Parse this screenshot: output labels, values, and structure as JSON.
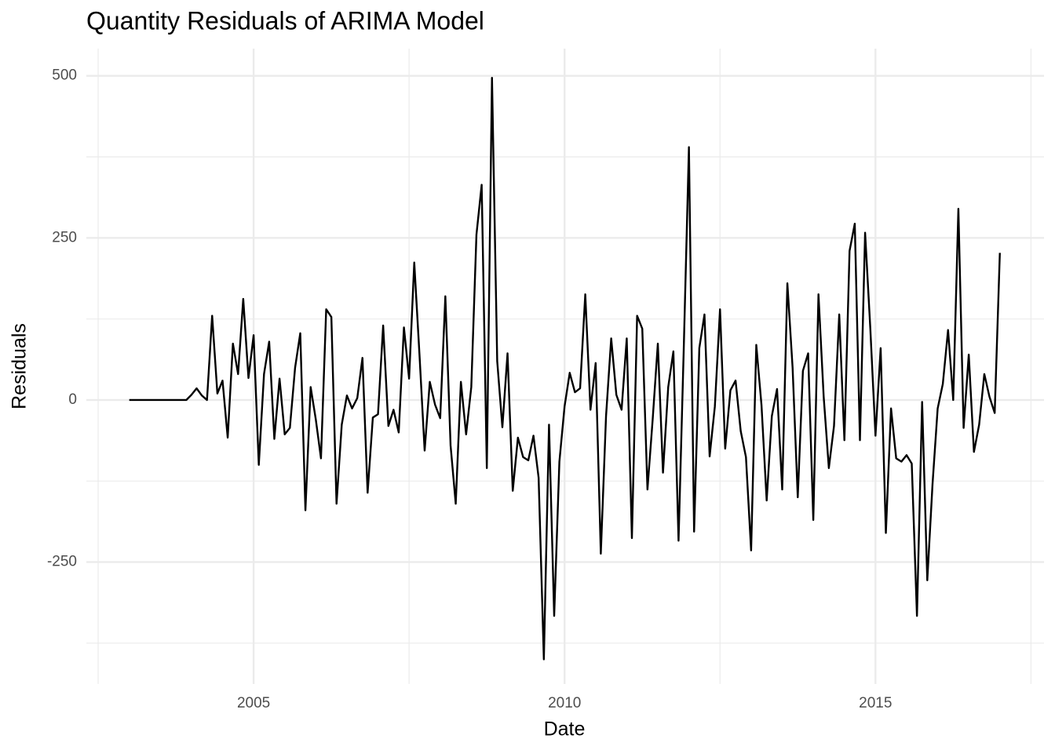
{
  "chart_data": {
    "type": "line",
    "title": "Quantity Residuals of ARIMA Model",
    "xlabel": "Date",
    "ylabel": "Residuals",
    "x": [
      2003,
      2003.083,
      2003.167,
      2003.25,
      2003.333,
      2003.417,
      2003.5,
      2003.583,
      2003.667,
      2003.75,
      2003.833,
      2003.917,
      2004,
      2004.083,
      2004.167,
      2004.25,
      2004.333,
      2004.417,
      2004.5,
      2004.583,
      2004.667,
      2004.75,
      2004.833,
      2004.917,
      2005,
      2005.083,
      2005.167,
      2005.25,
      2005.333,
      2005.417,
      2005.5,
      2005.583,
      2005.667,
      2005.75,
      2005.833,
      2005.917,
      2006,
      2006.083,
      2006.167,
      2006.25,
      2006.333,
      2006.417,
      2006.5,
      2006.583,
      2006.667,
      2006.75,
      2006.833,
      2006.917,
      2007,
      2007.083,
      2007.167,
      2007.25,
      2007.333,
      2007.417,
      2007.5,
      2007.583,
      2007.667,
      2007.75,
      2007.833,
      2007.917,
      2008,
      2008.083,
      2008.167,
      2008.25,
      2008.333,
      2008.417,
      2008.5,
      2008.583,
      2008.667,
      2008.75,
      2008.833,
      2008.917,
      2009,
      2009.083,
      2009.167,
      2009.25,
      2009.333,
      2009.417,
      2009.5,
      2009.583,
      2009.667,
      2009.75,
      2009.833,
      2009.917,
      2010,
      2010.083,
      2010.167,
      2010.25,
      2010.333,
      2010.417,
      2010.5,
      2010.583,
      2010.667,
      2010.75,
      2010.833,
      2010.917,
      2011,
      2011.083,
      2011.167,
      2011.25,
      2011.333,
      2011.417,
      2011.5,
      2011.583,
      2011.667,
      2011.75,
      2011.833,
      2011.917,
      2012,
      2012.083,
      2012.167,
      2012.25,
      2012.333,
      2012.417,
      2012.5,
      2012.583,
      2012.667,
      2012.75,
      2012.833,
      2012.917,
      2013,
      2013.083,
      2013.167,
      2013.25,
      2013.333,
      2013.417,
      2013.5,
      2013.583,
      2013.667,
      2013.75,
      2013.833,
      2013.917,
      2014,
      2014.083,
      2014.167,
      2014.25,
      2014.333,
      2014.417,
      2014.5,
      2014.583,
      2014.667,
      2014.75,
      2014.833,
      2014.917,
      2015,
      2015.083,
      2015.167,
      2015.25,
      2015.333,
      2015.417,
      2015.5,
      2015.583,
      2015.667,
      2015.75,
      2015.833,
      2015.917,
      2016,
      2016.083,
      2016.167,
      2016.25,
      2016.333,
      2016.417,
      2016.5,
      2016.583,
      2016.667,
      2016.75,
      2016.833,
      2016.917,
      2017
    ],
    "values": [
      0,
      0,
      0,
      0,
      0,
      0,
      0,
      0,
      0,
      0,
      0,
      0,
      8,
      18,
      7,
      0,
      130,
      10,
      30,
      -58,
      87,
      40,
      156,
      34,
      100,
      -100,
      40,
      90,
      -60,
      33,
      -53,
      -43,
      50,
      103,
      -170,
      20,
      -30,
      -90,
      140,
      128,
      -160,
      -38,
      7,
      -13,
      3,
      65,
      -143,
      -27,
      -22,
      115,
      -40,
      -15,
      -50,
      112,
      33,
      212,
      70,
      -78,
      28,
      -7,
      -28,
      160,
      -70,
      -160,
      28,
      -53,
      20,
      255,
      332,
      -105,
      497,
      60,
      -42,
      72,
      -140,
      -58,
      -88,
      -93,
      -55,
      -120,
      -400,
      -38,
      -333,
      -95,
      -10,
      42,
      12,
      18,
      163,
      -15,
      57,
      -237,
      -25,
      95,
      8,
      -15,
      95,
      -213,
      130,
      110,
      -138,
      -30,
      87,
      -112,
      20,
      75,
      -217,
      80,
      390,
      -203,
      80,
      132,
      -87,
      -10,
      140,
      -75,
      15,
      30,
      -48,
      -88,
      -232,
      85,
      -8,
      -155,
      -25,
      17,
      -138,
      180,
      50,
      -150,
      45,
      72,
      -185,
      163,
      5,
      -105,
      -40,
      132,
      -62,
      230,
      272,
      -62,
      258,
      110,
      -55,
      80,
      -205,
      -13,
      -90,
      -95,
      -85,
      -98,
      -333,
      -3,
      -278,
      -130,
      -13,
      25,
      108,
      0,
      295,
      -43,
      70,
      -80,
      -38,
      40,
      5,
      -20,
      227
    ],
    "color": "#000000",
    "xlim": [
      2002.31,
      2017.71
    ],
    "xticks": [
      2005,
      2010,
      2015
    ],
    "ylim": [
      -438,
      542
    ],
    "yticks": [
      -250,
      0,
      250,
      500
    ],
    "x_minor_grid": [
      2002.5,
      2007.5,
      2012.5,
      2017.5
    ],
    "y_minor_grid": [
      -375,
      -125,
      125,
      375
    ],
    "grid": true
  }
}
